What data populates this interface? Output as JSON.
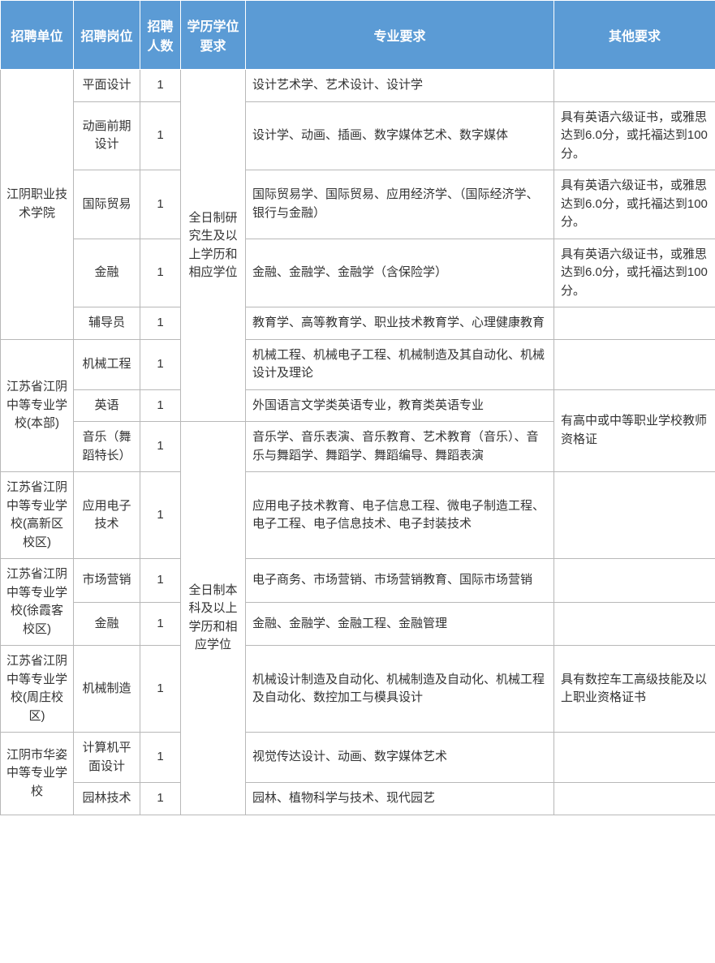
{
  "header": {
    "c0": "招聘单位",
    "c1": "招聘岗位",
    "c2": "招聘人数",
    "c3": "学历学位要求",
    "c4": "专业要求",
    "c5": "其他要求"
  },
  "edu": {
    "grad": "全日制研究生及以上学历和相应学位",
    "bach": "全日制本科及以上学历和相应学位"
  },
  "units": {
    "u1": "江阴职业技术学院",
    "u2": "江苏省江阴中等专业学校(本部)",
    "u3": "江苏省江阴中等专业学校(高新区校区)",
    "u4": "江苏省江阴中等专业学校(徐霞客校区)",
    "u5": "江苏省江阴中等专业学校(周庄校区)",
    "u6": "江阴市华姿中等专业学校"
  },
  "other": {
    "eng": "具有英语六级证书，或雅思达到6.0分，或托福达到100分。",
    "teach": "有高中或中等职业学校教师资格证",
    "cnc": "具有数控车工高级技能及以上职业资格证书"
  },
  "r": [
    {
      "pos": "平面设计",
      "num": "1",
      "major": "设计艺术学、艺术设计、设计学",
      "other": ""
    },
    {
      "pos": "动画前期设计",
      "num": "1",
      "major": "设计学、动画、插画、数字媒体艺术、数字媒体",
      "other": ""
    },
    {
      "pos": "国际贸易",
      "num": "1",
      "major": "国际贸易学、国际贸易、应用经济学、（国际经济学、银行与金融）",
      "other": ""
    },
    {
      "pos": "金融",
      "num": "1",
      "major": "金融、金融学、金融学（含保险学）",
      "other": ""
    },
    {
      "pos": "辅导员",
      "num": "1",
      "major": "教育学、高等教育学、职业技术教育学、心理健康教育",
      "other": ""
    },
    {
      "pos": "机械工程",
      "num": "1",
      "major": "机械工程、机械电子工程、机械制造及其自动化、机械设计及理论",
      "other": ""
    },
    {
      "pos": "英语",
      "num": "1",
      "major": "外国语言文学类英语专业，教育类英语专业",
      "other": ""
    },
    {
      "pos": "音乐（舞蹈特长）",
      "num": "1",
      "major": "音乐学、音乐表演、音乐教育、艺术教育（音乐）、音乐与舞蹈学、舞蹈学、舞蹈编导、舞蹈表演",
      "other": ""
    },
    {
      "pos": "应用电子技术",
      "num": "1",
      "major": "应用电子技术教育、电子信息工程、微电子制造工程、电子工程、电子信息技术、电子封装技术",
      "other": ""
    },
    {
      "pos": "市场营销",
      "num": "1",
      "major": "电子商务、市场营销、市场营销教育、国际市场营销",
      "other": ""
    },
    {
      "pos": "金融",
      "num": "1",
      "major": "金融、金融学、金融工程、金融管理",
      "other": ""
    },
    {
      "pos": "机械制造",
      "num": "1",
      "major": "机械设计制造及自动化、机械制造及自动化、机械工程及自动化、数控加工与模具设计",
      "other": ""
    },
    {
      "pos": "计算机平面设计",
      "num": "1",
      "major": "视觉传达设计、动画、数字媒体艺术",
      "other": ""
    },
    {
      "pos": "园林技术",
      "num": "1",
      "major": "园林、植物科学与技术、现代园艺",
      "other": ""
    }
  ]
}
